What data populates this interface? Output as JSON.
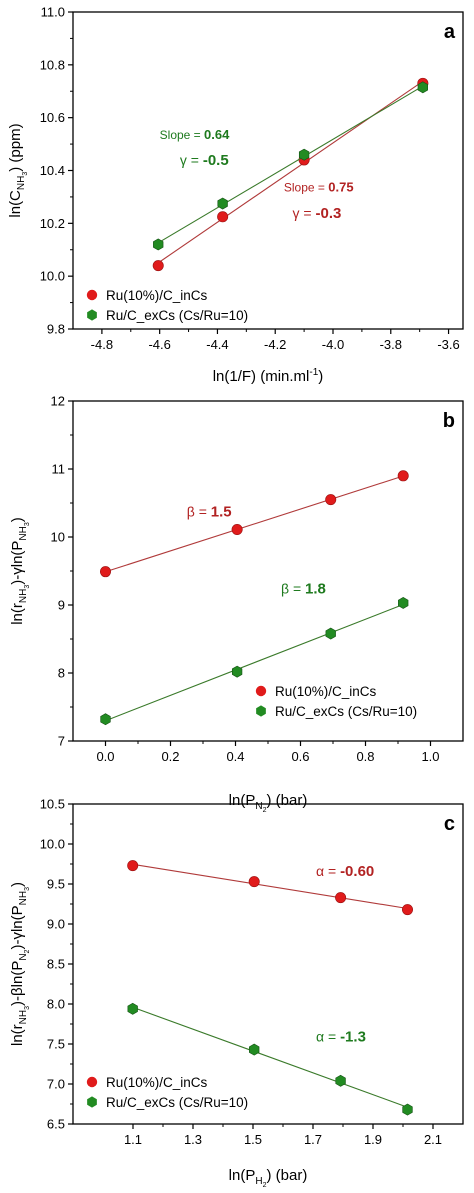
{
  "chart_data": [
    {
      "type": "scatter",
      "panel": "a",
      "xlabel": "ln(1/F) (min.ml",
      "xlabel_sup": "-1",
      "xlabel_close": ")",
      "ylabel_prefix": "ln(C",
      "ylabel_sub": "NH",
      "ylabel_subsub": "3",
      "ylabel_suffix": ") (ppm)",
      "xlim": [
        -4.9,
        -3.55
      ],
      "ylim": [
        9.8,
        11.0
      ],
      "xticks": [
        "-4.8",
        "-4.6",
        "-4.4",
        "-4.2",
        "-4.0",
        "-3.8",
        "-3.6"
      ],
      "xtick_values": [
        -4.8,
        -4.6,
        -4.4,
        -4.2,
        -4.0,
        -3.8,
        -3.6
      ],
      "yticks": [
        "9.8",
        "10.0",
        "10.2",
        "10.4",
        "10.6",
        "10.8",
        "11.0"
      ],
      "ytick_values": [
        9.8,
        10.0,
        10.2,
        10.4,
        10.6,
        10.8,
        11.0
      ],
      "legend_position": "bottom-left",
      "series": [
        {
          "name": "Ru(10%)/C_inCs",
          "color": "#e01b1b",
          "line_color": "#b03a3a",
          "marker": "circle",
          "x": [
            -4.605,
            -4.382,
            -4.1,
            -3.689
          ],
          "y": [
            10.04,
            10.225,
            10.44,
            10.73
          ]
        },
        {
          "name": "Ru/C_exCs (Cs/Ru=10)",
          "color": "#228b22",
          "line_color": "#3a7a2a",
          "marker": "hexagon",
          "x": [
            -4.605,
            -4.382,
            -4.1,
            -3.689
          ],
          "y": [
            10.12,
            10.275,
            10.46,
            10.715
          ]
        }
      ],
      "annotations": [
        {
          "label": "Slope = ",
          "value": "0.64",
          "color": "#1e7a1e",
          "x": -4.6,
          "y": 10.52,
          "size": 12,
          "bold": false
        },
        {
          "label": "γ = ",
          "value": "-0.5",
          "color": "#1e7a1e",
          "x": -4.53,
          "y": 10.42,
          "size": 14,
          "bold": true
        },
        {
          "label": "Slope = ",
          "value": "0.75",
          "color": "#b22222",
          "x": -4.17,
          "y": 10.32,
          "size": 12,
          "bold": false
        },
        {
          "label": "γ = ",
          "value": "-0.3",
          "color": "#b22222",
          "x": -4.14,
          "y": 10.22,
          "size": 14,
          "bold": true
        }
      ]
    },
    {
      "type": "scatter",
      "panel": "b",
      "xlabel_prefix": "ln(P",
      "xlabel_sub": "N",
      "xlabel_subsub": "2",
      "xlabel_suffix": ") (bar)",
      "ylabel_prefix": "ln(r",
      "ylabel_sub": "NH",
      "ylabel_subsub": "3",
      "ylabel_mid": ")-γln(P",
      "ylabel_sub2": "NH",
      "ylabel_subsub2": "3",
      "ylabel_suffix": ")",
      "xlim": [
        -0.1,
        1.1
      ],
      "ylim": [
        7,
        12
      ],
      "xticks": [
        "0.0",
        "0.2",
        "0.4",
        "0.6",
        "0.8",
        "1.0"
      ],
      "xtick_values": [
        0,
        0.2,
        0.4,
        0.6,
        0.8,
        1.0
      ],
      "yticks": [
        "7",
        "8",
        "9",
        "10",
        "11",
        "12"
      ],
      "ytick_values": [
        7,
        8,
        9,
        10,
        11,
        12
      ],
      "legend_position": "bottom-right",
      "series": [
        {
          "name": "Ru(10%)/C_inCs",
          "color": "#e01b1b",
          "line_color": "#b03a3a",
          "marker": "circle",
          "x": [
            0.0,
            0.405,
            0.693,
            0.916
          ],
          "y": [
            9.49,
            10.11,
            10.55,
            10.9
          ]
        },
        {
          "name": "Ru/C_exCs (Cs/Ru=10)",
          "color": "#228b22",
          "line_color": "#3a7a2a",
          "marker": "hexagon",
          "x": [
            0.0,
            0.405,
            0.693,
            0.916
          ],
          "y": [
            7.32,
            8.02,
            8.58,
            9.03
          ]
        }
      ],
      "annotations": [
        {
          "label": "β = ",
          "value": "1.5",
          "color": "#b22222",
          "x": 0.25,
          "y": 10.3,
          "size": 14,
          "bold": true
        },
        {
          "label": "β = ",
          "value": "1.8",
          "color": "#1e7a1e",
          "x": 0.54,
          "y": 9.17,
          "size": 14,
          "bold": true
        }
      ]
    },
    {
      "type": "scatter",
      "panel": "c",
      "xlabel_prefix": "ln(P",
      "xlabel_sub": "H",
      "xlabel_subsub": "2",
      "xlabel_suffix": ") (bar)",
      "ylabel_prefix": "ln(r",
      "ylabel_sub": "NH",
      "ylabel_subsub": "3",
      "ylabel_mid": ")-βln(P",
      "ylabel_sub2": "N",
      "ylabel_subsub2": "2",
      "ylabel_mid2": ")-γln(P",
      "ylabel_sub3": "NH",
      "ylabel_subsub3": "3",
      "ylabel_suffix": ")",
      "xlim": [
        0.9,
        2.2
      ],
      "ylim": [
        6.5,
        10.5
      ],
      "xticks": [
        "1.1",
        "1.3",
        "1.5",
        "1.7",
        "1.9",
        "2.1"
      ],
      "xtick_values": [
        1.1,
        1.3,
        1.5,
        1.7,
        1.9,
        2.1
      ],
      "yticks": [
        "6.5",
        "7.0",
        "7.5",
        "8.0",
        "8.5",
        "9.0",
        "9.5",
        "10.0",
        "10.5"
      ],
      "ytick_values": [
        6.5,
        7.0,
        7.5,
        8.0,
        8.5,
        9.0,
        9.5,
        10.0,
        10.5
      ],
      "legend_position": "bottom-left",
      "series": [
        {
          "name": "Ru(10%)/C_inCs",
          "color": "#e01b1b",
          "line_color": "#b03a3a",
          "marker": "circle",
          "x": [
            1.099,
            1.504,
            1.792,
            2.015
          ],
          "y": [
            9.73,
            9.53,
            9.33,
            9.18
          ]
        },
        {
          "name": "Ru/C_exCs (Cs/Ru=10)",
          "color": "#228b22",
          "line_color": "#3a7a2a",
          "marker": "hexagon",
          "x": [
            1.099,
            1.504,
            1.792,
            2.015
          ],
          "y": [
            7.94,
            7.43,
            7.04,
            6.68
          ]
        }
      ],
      "annotations": [
        {
          "label": "α = ",
          "value": "-0.60",
          "color": "#b22222",
          "x": 1.71,
          "y": 9.6,
          "size": 14,
          "bold": true
        },
        {
          "label": "α = ",
          "value": "-1.3",
          "color": "#1e7a1e",
          "x": 1.71,
          "y": 7.53,
          "size": 14,
          "bold": true
        }
      ]
    }
  ]
}
